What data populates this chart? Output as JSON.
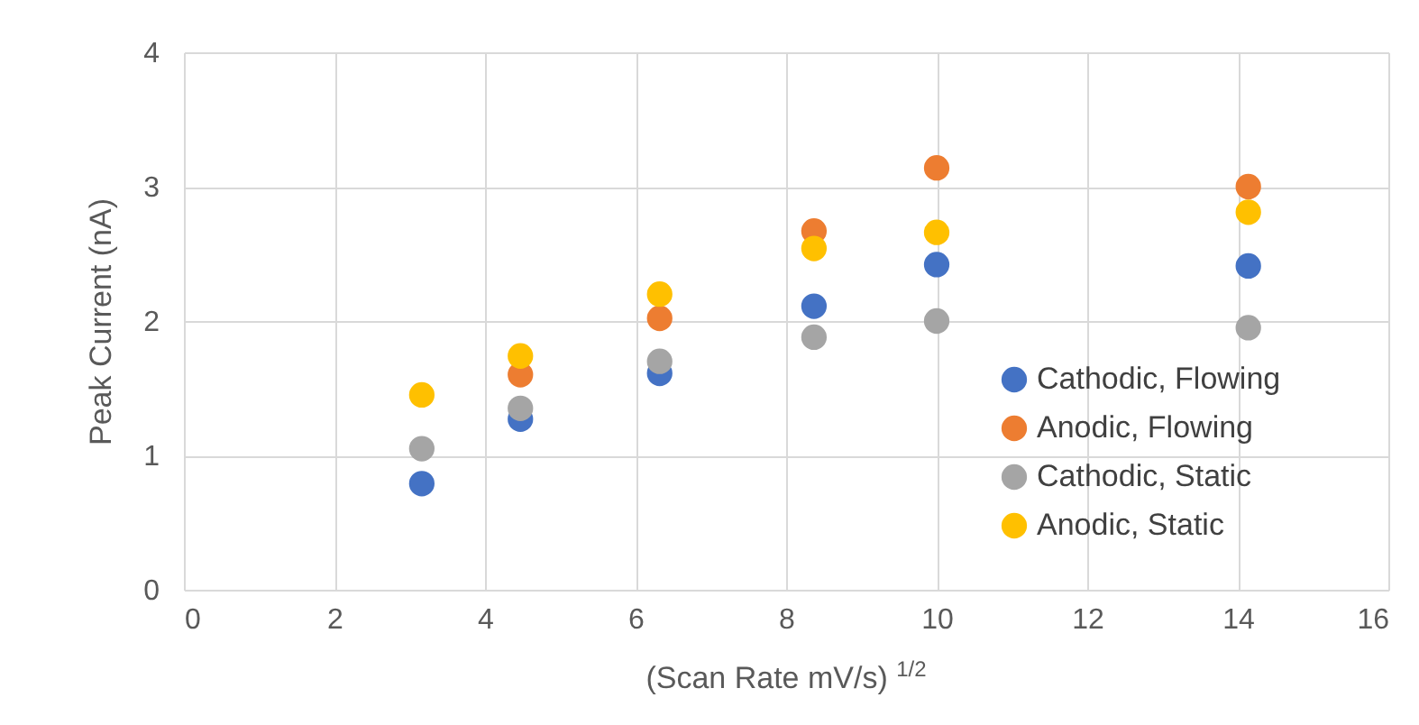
{
  "chart_data": {
    "type": "scatter",
    "xlabel": "(Scan Rate mV/s) $^{1/2}$",
    "ylabel": "Peak Current (nA)",
    "x": [
      3.16,
      4.47,
      6.32,
      8.37,
      10,
      14.14
    ],
    "series": [
      {
        "name": "Cathodic, Flowing",
        "color": "#4472c4",
        "values": [
          0.79,
          1.27,
          1.61,
          2.11,
          2.42,
          2.41
        ]
      },
      {
        "name": "Anodic, Flowing",
        "color": "#ed7d31",
        "values": [
          null,
          1.6,
          2.02,
          2.67,
          3.14,
          3.0
        ]
      },
      {
        "name": "Cathodic, Static",
        "color": "#a5a5a5",
        "values": [
          1.05,
          1.35,
          1.7,
          1.88,
          2.0,
          1.95
        ]
      },
      {
        "name": "Anodic, Static",
        "color": "#ffc000",
        "values": [
          1.45,
          1.74,
          2.2,
          2.54,
          2.66,
          2.81
        ]
      }
    ],
    "xlim": [
      0,
      16
    ],
    "xticks": [
      0,
      2,
      4,
      6,
      8,
      10,
      12,
      14,
      16
    ],
    "ylim": [
      0,
      4
    ],
    "yticks": [
      0,
      1,
      2,
      3,
      4
    ],
    "grid": true,
    "legend": "right",
    "marker": "circle"
  }
}
